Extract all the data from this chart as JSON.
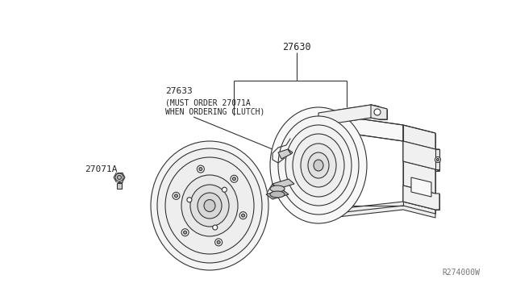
{
  "background_color": "#ffffff",
  "line_color": "#333333",
  "text_color": "#222222",
  "fig_width": 6.4,
  "fig_height": 3.72,
  "dpi": 100,
  "label_27630": "27630",
  "label_27633": "27633",
  "label_27633_note1": "(MUST ORDER 27071A",
  "label_27633_note2": "WHEN ORDERING CLUTCH)",
  "label_27071A": "27071A",
  "label_watermark": "R274000W"
}
